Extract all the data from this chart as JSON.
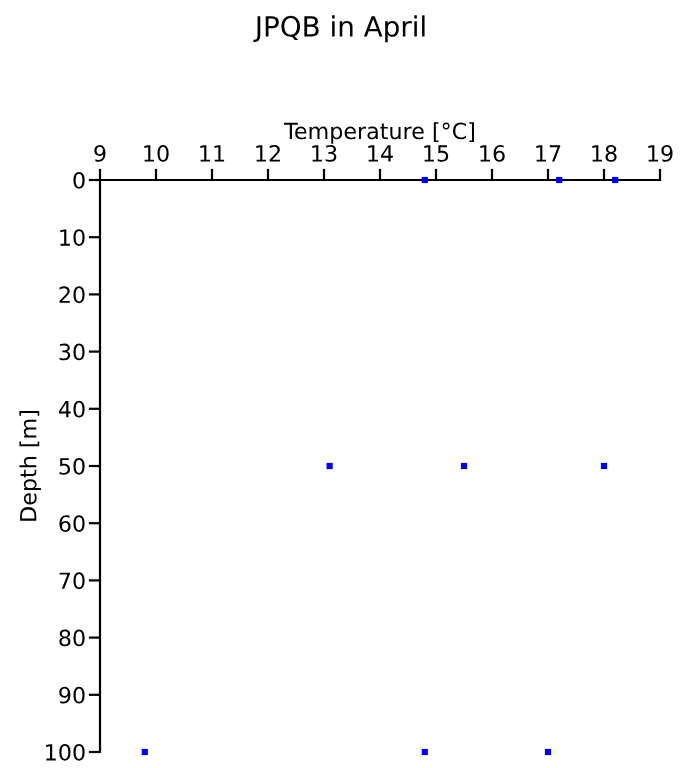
{
  "chart_data": {
    "type": "scatter",
    "title": "JPQB in April",
    "xlabel": "Temperature [°C]",
    "ylabel": "Depth [m]",
    "x": [
      14.8,
      17.2,
      18.2,
      13.1,
      15.5,
      18.0,
      9.8,
      14.8,
      17.0
    ],
    "values": [
      0,
      0,
      0,
      50,
      50,
      50,
      100,
      100,
      100
    ],
    "color": "#0000ff",
    "marker": "square",
    "xlim": [
      9,
      19
    ],
    "xticks": [
      9,
      10,
      11,
      12,
      13,
      14,
      15,
      16,
      17,
      18,
      19
    ],
    "ylim": [
      100,
      0
    ],
    "yticks": [
      0,
      10,
      20,
      30,
      40,
      50,
      60,
      70,
      80,
      90,
      100
    ],
    "grid": false,
    "legend": false
  }
}
